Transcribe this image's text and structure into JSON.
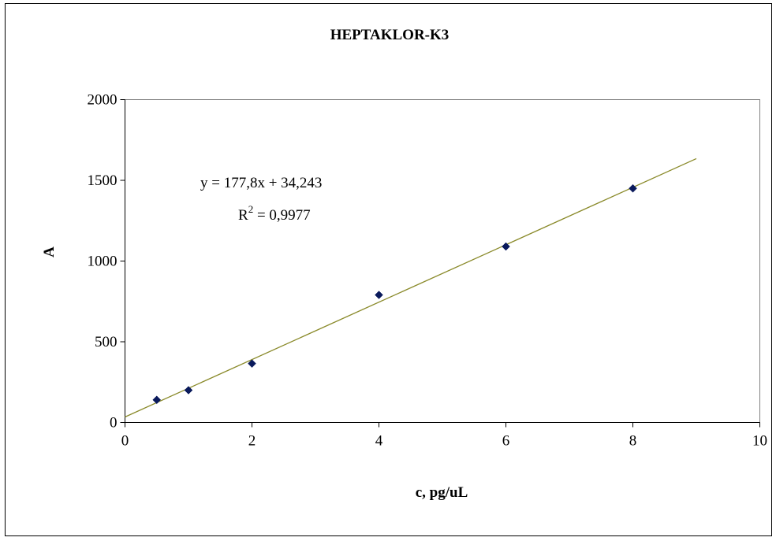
{
  "chart_data": {
    "type": "scatter",
    "title": "HEPTAKLOR-K3",
    "xlabel": "c, pg/uL",
    "ylabel": "A",
    "xlim": [
      0,
      10
    ],
    "ylim": [
      0,
      2000
    ],
    "x_ticks": [
      0,
      2,
      4,
      6,
      8,
      10
    ],
    "y_ticks": [
      0,
      500,
      1000,
      1500,
      2000
    ],
    "grid": false,
    "legend": "none",
    "series": [
      {
        "x": [
          0.5,
          1,
          2,
          4,
          6,
          8
        ],
        "y": [
          140,
          200,
          365,
          790,
          1090,
          1450
        ],
        "marker": "diamond",
        "color": "#0a1a5c"
      }
    ],
    "trendline": {
      "type": "linear",
      "slope": 177.8,
      "intercept": 34.243,
      "x_range": [
        0,
        9
      ],
      "color": "#8a8a2a",
      "equation_text": "y = 177,8x + 34,243",
      "r2_prefix": "R",
      "r2_sup": "2",
      "r2_suffix": " = 0,9977"
    }
  }
}
